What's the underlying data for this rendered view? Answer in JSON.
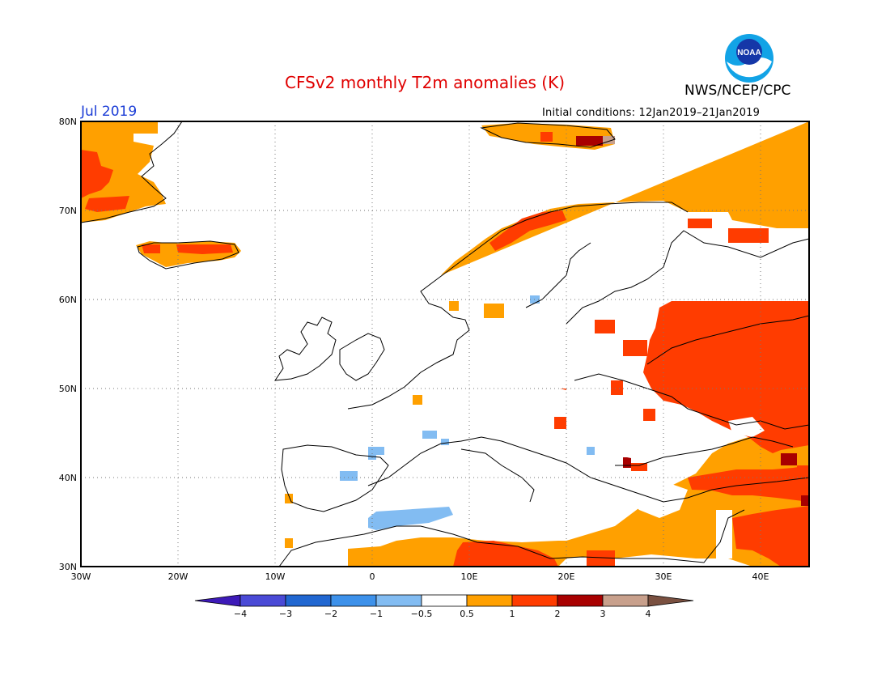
{
  "header": {
    "title": "CFSv2 monthly T2m anomalies (K)",
    "agency": "NWS/NCEP/CPC",
    "logo_text": "NOAA",
    "month": "Jul 2019",
    "initial_conditions": "Initial conditions: 12Jan2019–21Jan2019"
  },
  "map": {
    "lon_range": [
      -30,
      45
    ],
    "lat_range": [
      30,
      80
    ],
    "grid": true,
    "lat_labels": [
      "80N",
      "70N",
      "60N",
      "50N",
      "40N",
      "30N"
    ],
    "lon_labels": [
      "30W",
      "20W",
      "10W",
      "0",
      "10E",
      "20E",
      "30E",
      "40E"
    ],
    "features": [
      {
        "lon": -27,
        "lat": 74,
        "name": "greenland-east"
      },
      {
        "lon": -18,
        "lat": 65,
        "name": "iceland"
      },
      {
        "lon": 20,
        "lat": 78,
        "name": "svalbard"
      },
      {
        "lon": 25,
        "lat": 65,
        "name": "fennoscandia"
      },
      {
        "lon": 38,
        "lat": 52,
        "name": "russia-ukraine"
      },
      {
        "lon": 20,
        "lat": 47,
        "name": "central-europe"
      },
      {
        "lon": 12,
        "lat": 31,
        "name": "north-africa"
      }
    ]
  },
  "colorbar": {
    "ticks": [
      "-4",
      "-3",
      "-2",
      "-1",
      "-0.5",
      "0.5",
      "1",
      "2",
      "3",
      "4"
    ],
    "colors": [
      "#3d1ab8",
      "#4a4ad6",
      "#2167d1",
      "#3d91ea",
      "#82bcf2",
      "#ffffff",
      "#ffa000",
      "#ff3c00",
      "#a80000",
      "#c8a08c",
      "#7a5040"
    ]
  },
  "colors": {
    "pos_05_1": "#ffa000",
    "pos_1_2": "#ff3c00",
    "pos_2_3": "#a80000",
    "pos_3_4": "#c8a08c",
    "neg_05_1": "#82bcf2",
    "title": "#e00000",
    "month": "#1a3cd6"
  }
}
